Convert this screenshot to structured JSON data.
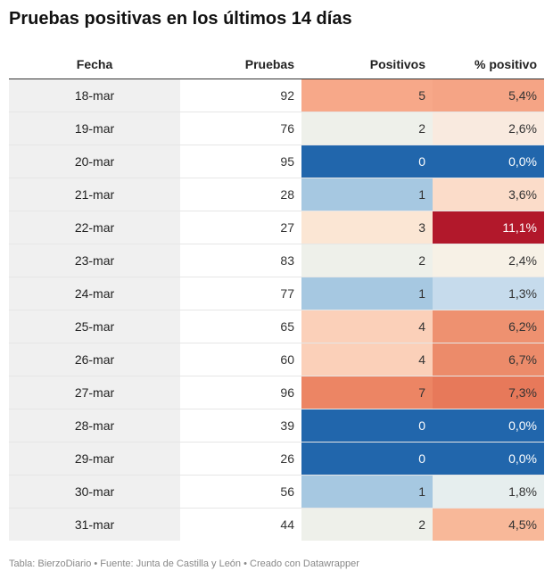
{
  "title": "Pruebas positivas en los últimos 14 días",
  "footer": "Tabla: BierzoDiario • Fuente: Junta de Castilla y León • Creado con Datawrapper",
  "colors": {
    "date_bg": "#f0f0f0",
    "positivos": {
      "0": "#2166ac",
      "1": "#a6c8e1",
      "2": "#eef0ea",
      "3": "#fbe6d4",
      "4": "#fbd0b9",
      "5": "#f7a889",
      "7": "#ec8564"
    },
    "pct": {
      "0,0%": "#2166ac",
      "1,3%": "#c6dbec",
      "1,8%": "#e6eeee",
      "2,4%": "#f7f1e6",
      "2,6%": "#f9eadf",
      "3,6%": "#fbdcc9",
      "4,5%": "#f8b899",
      "5,4%": "#f5a485",
      "6,2%": "#ee9170",
      "6,7%": "#ec8b6a",
      "7,3%": "#e7795a",
      "11,1%": "#b2182b"
    },
    "light_text": "#ffffff",
    "dark_text": "#333333"
  },
  "chart_data": {
    "type": "table",
    "columns": [
      "Fecha",
      "Pruebas",
      "Positivos",
      "% positivo"
    ],
    "rows": [
      {
        "fecha": "18-mar",
        "pruebas": "92",
        "positivos": "5",
        "pct": "5,4%"
      },
      {
        "fecha": "19-mar",
        "pruebas": "76",
        "positivos": "2",
        "pct": "2,6%"
      },
      {
        "fecha": "20-mar",
        "pruebas": "95",
        "positivos": "0",
        "pct": "0,0%"
      },
      {
        "fecha": "21-mar",
        "pruebas": "28",
        "positivos": "1",
        "pct": "3,6%"
      },
      {
        "fecha": "22-mar",
        "pruebas": "27",
        "positivos": "3",
        "pct": "11,1%"
      },
      {
        "fecha": "23-mar",
        "pruebas": "83",
        "positivos": "2",
        "pct": "2,4%"
      },
      {
        "fecha": "24-mar",
        "pruebas": "77",
        "positivos": "1",
        "pct": "1,3%"
      },
      {
        "fecha": "25-mar",
        "pruebas": "65",
        "positivos": "4",
        "pct": "6,2%"
      },
      {
        "fecha": "26-mar",
        "pruebas": "60",
        "positivos": "4",
        "pct": "6,7%"
      },
      {
        "fecha": "27-mar",
        "pruebas": "96",
        "positivos": "7",
        "pct": "7,3%"
      },
      {
        "fecha": "28-mar",
        "pruebas": "39",
        "positivos": "0",
        "pct": "0,0%"
      },
      {
        "fecha": "29-mar",
        "pruebas": "26",
        "positivos": "0",
        "pct": "0,0%"
      },
      {
        "fecha": "30-mar",
        "pruebas": "56",
        "positivos": "1",
        "pct": "1,8%"
      },
      {
        "fecha": "31-mar",
        "pruebas": "44",
        "positivos": "2",
        "pct": "4,5%"
      }
    ]
  }
}
